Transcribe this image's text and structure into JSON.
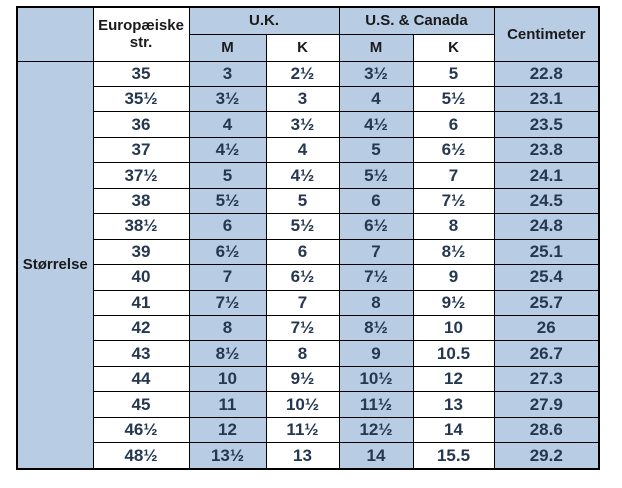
{
  "colors": {
    "cell_blue": "#b8cce4",
    "cell_white": "#ffffff",
    "border_black": "#000000",
    "data_text": "#263850",
    "header_text": "#1a1a1a"
  },
  "chart_data": {
    "type": "table",
    "row_group_label": "Størrelse",
    "header": {
      "corner": "",
      "european": "Europæiske str.",
      "uk": "U.K.",
      "us": "U.S. & Canada",
      "cm": "Centimeter",
      "uk_sub": [
        "M",
        "K"
      ],
      "us_sub": [
        "M",
        "K"
      ]
    },
    "columns": [
      "Europæiske str.",
      "U.K. M",
      "U.K. K",
      "U.S. & Canada M",
      "U.S. & Canada K",
      "Centimeter"
    ],
    "rows": [
      [
        "35",
        "3",
        "2½",
        "3½",
        "5",
        "22.8"
      ],
      [
        "35½",
        "3½",
        "3",
        "4",
        "5½",
        "23.1"
      ],
      [
        "36",
        "4",
        "3½",
        "4½",
        "6",
        "23.5"
      ],
      [
        "37",
        "4½",
        "4",
        "5",
        "6½",
        "23.8"
      ],
      [
        "37½",
        "5",
        "4½",
        "5½",
        "7",
        "24.1"
      ],
      [
        "38",
        "5½",
        "5",
        "6",
        "7½",
        "24.5"
      ],
      [
        "38½",
        "6",
        "5½",
        "6½",
        "8",
        "24.8"
      ],
      [
        "39",
        "6½",
        "6",
        "7",
        "8½",
        "25.1"
      ],
      [
        "40",
        "7",
        "6½",
        "7½",
        "9",
        "25.4"
      ],
      [
        "41",
        "7½",
        "7",
        "8",
        "9½",
        "25.7"
      ],
      [
        "42",
        "8",
        "7½",
        "8½",
        "10",
        "26"
      ],
      [
        "43",
        "8½",
        "8",
        "9",
        "10.5",
        "26.7"
      ],
      [
        "44",
        "10",
        "9½",
        "10½",
        "12",
        "27.3"
      ],
      [
        "45",
        "11",
        "10½",
        "11½",
        "13",
        "27.9"
      ],
      [
        "46½",
        "12",
        "11½",
        "12½",
        "14",
        "28.6"
      ],
      [
        "48½",
        "13½",
        "13",
        "14",
        "15.5",
        "29.2"
      ]
    ]
  }
}
